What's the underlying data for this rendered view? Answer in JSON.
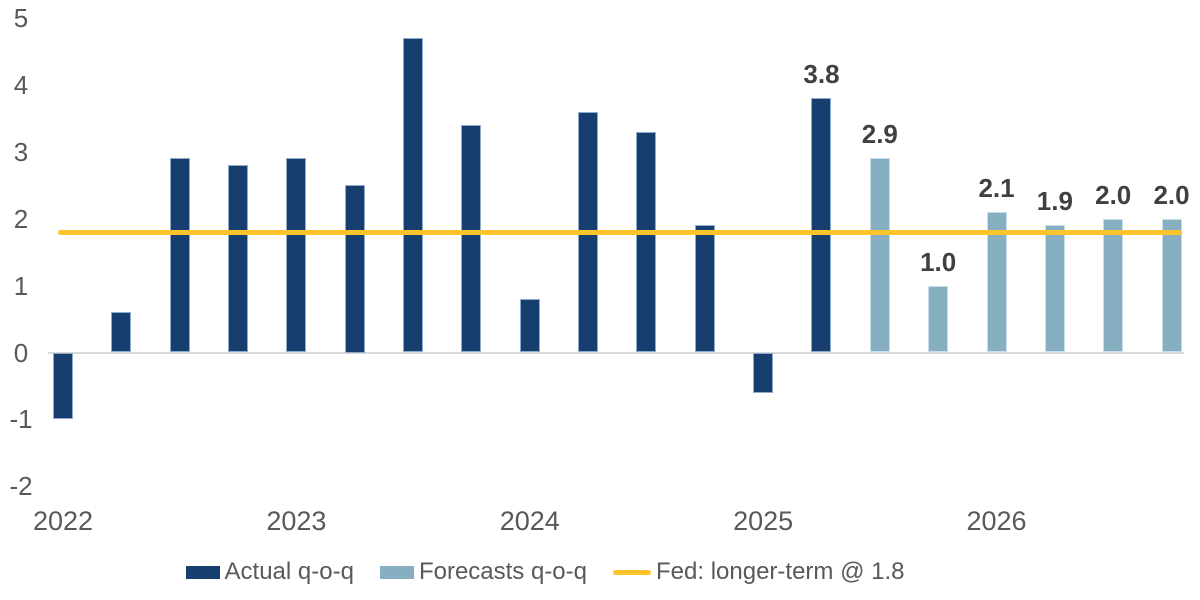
{
  "chart_data": {
    "type": "bar",
    "title": "",
    "ylim": [
      -2,
      5
    ],
    "y_ticks": [
      "5",
      "4",
      "3",
      "2",
      "1",
      "0",
      "-1",
      "-2"
    ],
    "x_year_labels": [
      "2022",
      "2023",
      "2024",
      "2025",
      "2026"
    ],
    "grid": false,
    "legend_position": "bottom",
    "bars": [
      {
        "quarter": "2022-q1",
        "value": -1.0,
        "series": "actual"
      },
      {
        "quarter": "2022-q2",
        "value": 0.6,
        "series": "actual"
      },
      {
        "quarter": "2022-q3",
        "value": 2.9,
        "series": "actual"
      },
      {
        "quarter": "2022-q4",
        "value": 2.8,
        "series": "actual"
      },
      {
        "quarter": "2023-q1",
        "value": 2.9,
        "series": "actual"
      },
      {
        "quarter": "2023-q2",
        "value": 2.5,
        "series": "actual"
      },
      {
        "quarter": "2023-q3",
        "value": 4.7,
        "series": "actual"
      },
      {
        "quarter": "2023-q4",
        "value": 3.4,
        "series": "actual"
      },
      {
        "quarter": "2024-q1",
        "value": 0.8,
        "series": "actual"
      },
      {
        "quarter": "2024-q2",
        "value": 3.6,
        "series": "actual"
      },
      {
        "quarter": "2024-q3",
        "value": 3.3,
        "series": "actual"
      },
      {
        "quarter": "2024-q4",
        "value": 1.9,
        "series": "actual"
      },
      {
        "quarter": "2025-q1",
        "value": -0.6,
        "series": "actual"
      },
      {
        "quarter": "2025-q2",
        "value": 3.8,
        "series": "actual",
        "label": "3.8"
      },
      {
        "quarter": "2025-q3",
        "value": 2.9,
        "series": "forecast",
        "label": "2.9"
      },
      {
        "quarter": "2025-q4",
        "value": 1.0,
        "series": "forecast",
        "label": "1.0"
      },
      {
        "quarter": "2026-q1",
        "value": 2.1,
        "series": "forecast",
        "label": "2.1"
      },
      {
        "quarter": "2026-q2",
        "value": 1.9,
        "series": "forecast",
        "label": "1.9"
      },
      {
        "quarter": "2026-q3",
        "value": 2.0,
        "series": "forecast",
        "label": "2.0"
      },
      {
        "quarter": "2026-q4",
        "value": 2.0,
        "series": "forecast",
        "label": "2.0"
      }
    ],
    "reference_line": {
      "value": 1.8,
      "label": "Fed: longer-term @ 1.8"
    }
  },
  "legend": {
    "actual_label": "Actual q-o-q",
    "forecast_label": "Forecasts q-o-q",
    "fed_label": "Fed: longer-term @ 1.8"
  },
  "colors": {
    "actual": "#163F70",
    "forecast": "#87AFC2",
    "fed_line": "#FFC42B",
    "axis_text": "#595959",
    "data_label": "#404040",
    "zero_line": "#D9D9D9"
  }
}
